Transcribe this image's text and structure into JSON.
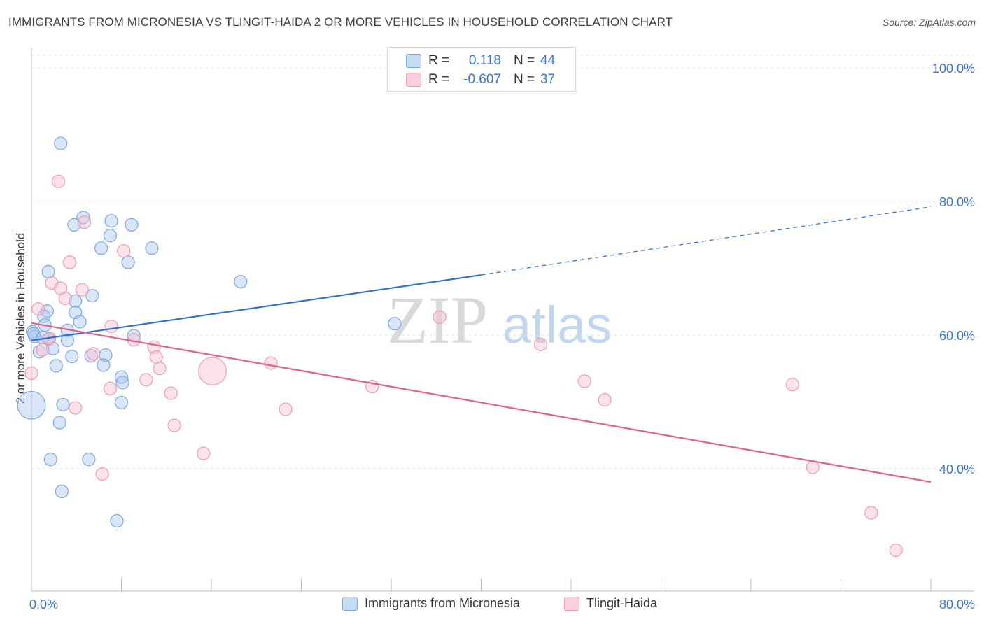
{
  "title": "IMMIGRANTS FROM MICRONESIA VS TLINGIT-HAIDA 2 OR MORE VEHICLES IN HOUSEHOLD CORRELATION CHART",
  "source": "Source: ZipAtlas.com",
  "watermark": {
    "zip": "ZIP",
    "atlas": "atlas"
  },
  "legend": {
    "r_label": "R =",
    "n_label": "N =",
    "rows": [
      {
        "r": "0.118",
        "n": "44"
      },
      {
        "r": "-0.607",
        "n": "37"
      }
    ]
  },
  "chart_data": {
    "type": "scatter",
    "title": "IMMIGRANTS FROM MICRONESIA VS TLINGIT-HAIDA 2 OR MORE VEHICLES IN HOUSEHOLD CORRELATION CHART",
    "xlabel": "",
    "ylabel": "2 or more Vehicles in Household",
    "xlim": [
      0,
      80
    ],
    "ylim": [
      20,
      100
    ],
    "x_tick_labels": [
      "0.0%",
      "80.0%"
    ],
    "y_tick_labels": [
      {
        "value": 100,
        "label": "100.0%"
      },
      {
        "value": 80,
        "label": "80.0%"
      },
      {
        "value": 60,
        "label": "60.0%"
      },
      {
        "value": 40,
        "label": "40.0%"
      }
    ],
    "grid": true,
    "legend_position": "top-center",
    "series": [
      {
        "name": "Immigrants from Micronesia",
        "color": "#8ab4e8",
        "line_color": "#2f6fd0",
        "trend": {
          "x0": 0,
          "y0": 59.2,
          "x1": 40,
          "y1": 69.0,
          "dashed_to_x": 80,
          "dashed_to_y": 79.2
        },
        "points": [
          [
            2.6,
            88.7
          ],
          [
            4.6,
            77.6
          ],
          [
            7.1,
            77.1
          ],
          [
            3.8,
            76.5
          ],
          [
            8.9,
            76.5
          ],
          [
            7.0,
            74.9
          ],
          [
            6.2,
            73.0
          ],
          [
            10.7,
            73.0
          ],
          [
            8.6,
            70.9
          ],
          [
            1.5,
            69.5
          ],
          [
            18.6,
            68.0
          ],
          [
            5.4,
            65.9
          ],
          [
            3.9,
            65.1
          ],
          [
            1.4,
            63.6
          ],
          [
            3.9,
            63.4
          ],
          [
            1.1,
            62.8
          ],
          [
            4.3,
            62.0
          ],
          [
            1.2,
            61.5
          ],
          [
            0.1,
            60.5
          ],
          [
            3.2,
            60.7
          ],
          [
            0.3,
            59.8
          ],
          [
            9.1,
            59.9
          ],
          [
            1.5,
            59.4
          ],
          [
            3.2,
            59.2
          ],
          [
            32.3,
            61.7
          ],
          [
            0.7,
            57.5
          ],
          [
            1.9,
            58.0
          ],
          [
            3.6,
            56.8
          ],
          [
            5.3,
            56.9
          ],
          [
            6.6,
            57.0
          ],
          [
            2.2,
            55.4
          ],
          [
            6.4,
            55.5
          ],
          [
            8.0,
            53.7
          ],
          [
            8.1,
            52.9
          ],
          [
            0.0,
            49.5
          ],
          [
            2.8,
            49.6
          ],
          [
            8.0,
            49.9
          ],
          [
            2.5,
            46.9
          ],
          [
            1.7,
            41.4
          ],
          [
            5.1,
            41.4
          ],
          [
            2.7,
            36.6
          ],
          [
            7.6,
            32.2
          ],
          [
            0.2,
            60.2
          ],
          [
            1.0,
            59.6
          ]
        ],
        "sizes": [
          1,
          1,
          1,
          1,
          1,
          1,
          1,
          1,
          1,
          1,
          1,
          1,
          1,
          1,
          1,
          1,
          1,
          1,
          1,
          1,
          1,
          1,
          1,
          1,
          1,
          1,
          1,
          1,
          1,
          1,
          1,
          1,
          1,
          1,
          2.2,
          1,
          1,
          1,
          1,
          1,
          1,
          1,
          1,
          1
        ]
      },
      {
        "name": "Tlingit-Haida",
        "color": "#f4a8c0",
        "line_color": "#e0608e",
        "trend": {
          "x0": 0,
          "y0": 61.8,
          "x1": 80,
          "y1": 38.0
        },
        "points": [
          [
            2.4,
            83.0
          ],
          [
            4.7,
            76.9
          ],
          [
            8.2,
            72.6
          ],
          [
            3.4,
            70.9
          ],
          [
            1.8,
            67.8
          ],
          [
            2.6,
            67.0
          ],
          [
            4.5,
            66.8
          ],
          [
            3.0,
            65.5
          ],
          [
            0.6,
            63.9
          ],
          [
            36.3,
            62.7
          ],
          [
            7.1,
            61.3
          ],
          [
            1.6,
            59.5
          ],
          [
            9.1,
            59.3
          ],
          [
            1.0,
            57.8
          ],
          [
            10.9,
            58.2
          ],
          [
            45.3,
            58.6
          ],
          [
            5.5,
            57.2
          ],
          [
            11.1,
            56.7
          ],
          [
            21.3,
            55.8
          ],
          [
            11.4,
            55.0
          ],
          [
            16.1,
            54.6
          ],
          [
            0.0,
            54.3
          ],
          [
            10.2,
            53.3
          ],
          [
            49.2,
            53.1
          ],
          [
            67.7,
            52.6
          ],
          [
            30.3,
            52.3
          ],
          [
            7.0,
            52.0
          ],
          [
            12.4,
            51.3
          ],
          [
            51.0,
            50.3
          ],
          [
            3.9,
            49.1
          ],
          [
            22.6,
            48.9
          ],
          [
            12.7,
            46.5
          ],
          [
            15.3,
            42.3
          ],
          [
            6.3,
            39.2
          ],
          [
            69.5,
            40.2
          ],
          [
            74.7,
            33.4
          ],
          [
            76.9,
            27.8
          ]
        ],
        "sizes": [
          1,
          1,
          1,
          1,
          1,
          1,
          1,
          1,
          1,
          1,
          1,
          1,
          1,
          1,
          1,
          1,
          1,
          1,
          1,
          1,
          2.2,
          1,
          1,
          1,
          1,
          1,
          1,
          1,
          1,
          1,
          1,
          1,
          1,
          1,
          1,
          1,
          1
        ]
      }
    ]
  }
}
